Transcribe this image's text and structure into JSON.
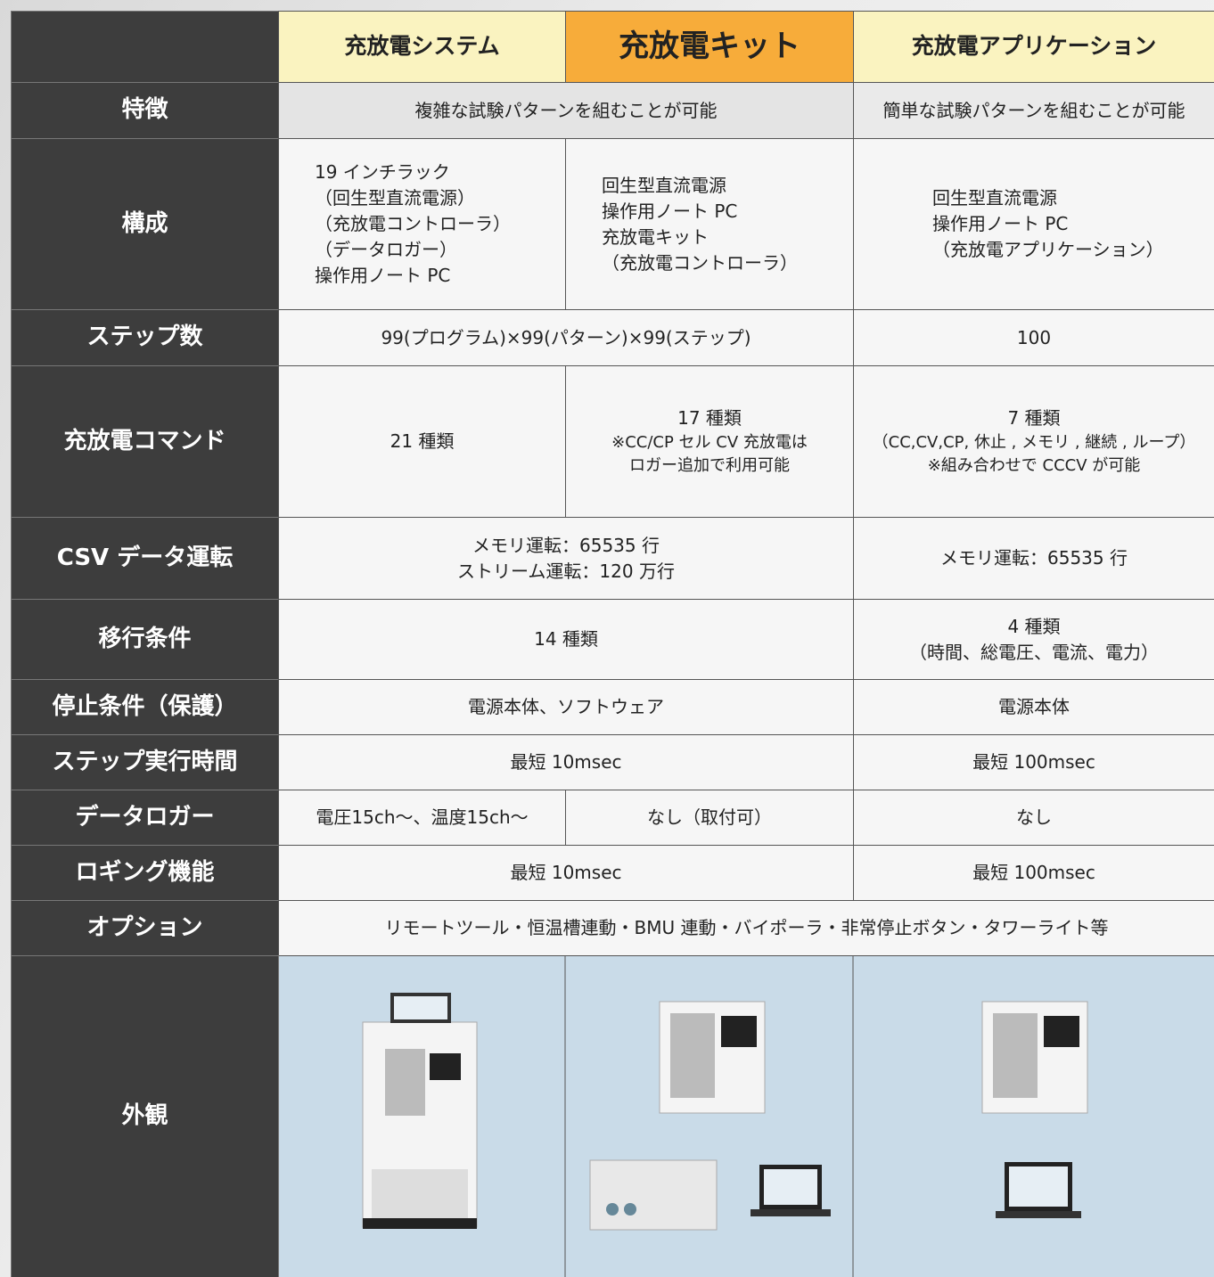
{
  "table": {
    "columns": [
      "充放電システム",
      "充放電キット",
      "充放電アプリケーション"
    ],
    "rows": [
      {
        "label": "特徴",
        "cells": [
          [
            "複雑な試験パターンを組むことが可能"
          ],
          [
            "簡単な試験パターンを組むことが可能"
          ]
        ]
      },
      {
        "label": "構成",
        "cells": [
          [
            "19 インチラック",
            "（回生型直流電源）",
            "（充放電コントローラ）",
            "（データロガー）",
            "操作用ノート PC"
          ],
          [
            "回生型直流電源",
            "操作用ノート PC",
            "充放電キット",
            "（充放電コントローラ）"
          ],
          [
            "回生型直流電源",
            "操作用ノート PC",
            "（充放電アプリケーション）"
          ]
        ]
      },
      {
        "label": "ステップ数",
        "cells": [
          [
            "99(プログラム)×99(パターン)×99(ステップ)"
          ],
          [
            "100"
          ]
        ]
      },
      {
        "label": "充放電コマンド",
        "cells": [
          [
            "21 種類"
          ],
          [
            "17 種類",
            "※CC/CP セル CV 充放電は",
            "ロガー追加で利用可能"
          ],
          [
            "7 種類",
            "（CC,CV,CP, 休止 , メモリ , 継続 , ループ）",
            "※組み合わせで CCCV が可能"
          ]
        ]
      },
      {
        "label": "CSV データ運転",
        "cells": [
          [
            "メモリ運転：65535 行",
            "ストリーム運転：120 万行"
          ],
          [
            "メモリ運転：65535 行"
          ]
        ]
      },
      {
        "label": "移行条件",
        "cells": [
          [
            "14 種類"
          ],
          [
            "4 種類",
            "（時間、総電圧、電流、電力）"
          ]
        ]
      },
      {
        "label": "停止条件（保護）",
        "cells": [
          [
            "電源本体、ソフトウェア"
          ],
          [
            "電源本体"
          ]
        ]
      },
      {
        "label": "ステップ実行時間",
        "cells": [
          [
            "最短 10msec"
          ],
          [
            "最短 100msec"
          ]
        ]
      },
      {
        "label": "データロガー",
        "cells": [
          [
            "電圧15ch～、温度15ch～"
          ],
          [
            "なし（取付可）"
          ],
          [
            "なし"
          ]
        ]
      },
      {
        "label": "ロギング機能",
        "cells": [
          [
            "最短 10msec"
          ],
          [
            "最短 100msec"
          ]
        ]
      },
      {
        "label": "オプション",
        "cells": [
          [
            "リモートツール・恒温槽連動・BMU 連動・バイポーラ・非常停止ボタン・タワーライト等"
          ]
        ]
      },
      {
        "label": "外観",
        "cells": []
      }
    ]
  }
}
